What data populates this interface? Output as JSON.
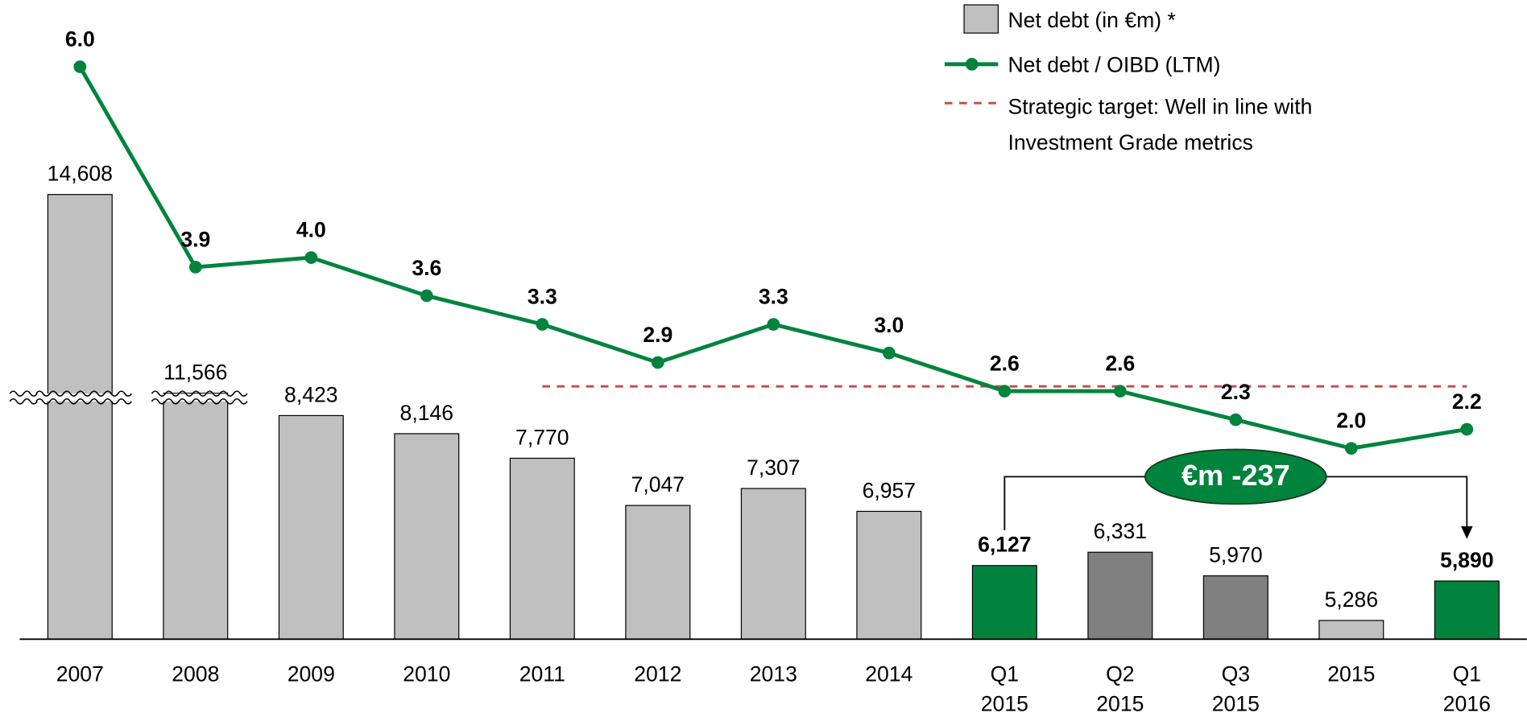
{
  "chart_data": {
    "type": "bar_line",
    "categories": [
      "2007",
      "2008",
      "2009",
      "2010",
      "2011",
      "2012",
      "2013",
      "2014",
      "Q1 2015",
      "Q2 2015",
      "Q3 2015",
      "2015",
      "Q1 2016"
    ],
    "series": [
      {
        "name": "Net debt (in €m) *",
        "type": "bar",
        "color": "#c0c0c0",
        "colors": [
          "#c0c0c0",
          "#c0c0c0",
          "#c0c0c0",
          "#c0c0c0",
          "#c0c0c0",
          "#c0c0c0",
          "#c0c0c0",
          "#c0c0c0",
          "#00843d",
          "#808080",
          "#808080",
          "#c0c0c0",
          "#00843d"
        ],
        "values": [
          14608,
          11566,
          8423,
          8146,
          7770,
          7047,
          7307,
          6957,
          6127,
          6331,
          5970,
          5286,
          5890
        ],
        "value_labels": [
          "14,608",
          "11,566",
          "8,423",
          "8,146",
          "7,770",
          "7,047",
          "7,307",
          "6,957",
          "6,127",
          "6,331",
          "5,970",
          "5,286",
          "5,890"
        ],
        "bold_labels": [
          false,
          false,
          false,
          false,
          false,
          false,
          false,
          false,
          true,
          false,
          false,
          false,
          true
        ]
      },
      {
        "name": "Net debt / OIBD (LTM)",
        "type": "line",
        "axis": "y2",
        "color": "#00843d",
        "values": [
          6.0,
          3.9,
          4.0,
          3.6,
          3.3,
          2.9,
          3.3,
          3.0,
          2.6,
          2.6,
          2.3,
          2.0,
          2.2
        ],
        "value_labels": [
          "6.0",
          "3.9",
          "4.0",
          "3.6",
          "3.3",
          "2.9",
          "3.3",
          "3.0",
          "2.6",
          "2.6",
          "2.3",
          "2.0",
          "2.2"
        ]
      }
    ],
    "ylim": [
      5000,
      15000
    ],
    "y_break": [
      8700,
      11500
    ],
    "y2lim": [
      0,
      6.7
    ],
    "reference_line": {
      "name": "Strategic target: Well in line with Investment Grade metrics",
      "value": 2.65,
      "axis": "y2",
      "color": "#c0504d",
      "from": "2011",
      "to": "Q1 2016"
    },
    "annotation": {
      "text": "€m -237",
      "from": "Q1 2015",
      "to": "Q1 2016",
      "color": "#00843d"
    }
  }
}
